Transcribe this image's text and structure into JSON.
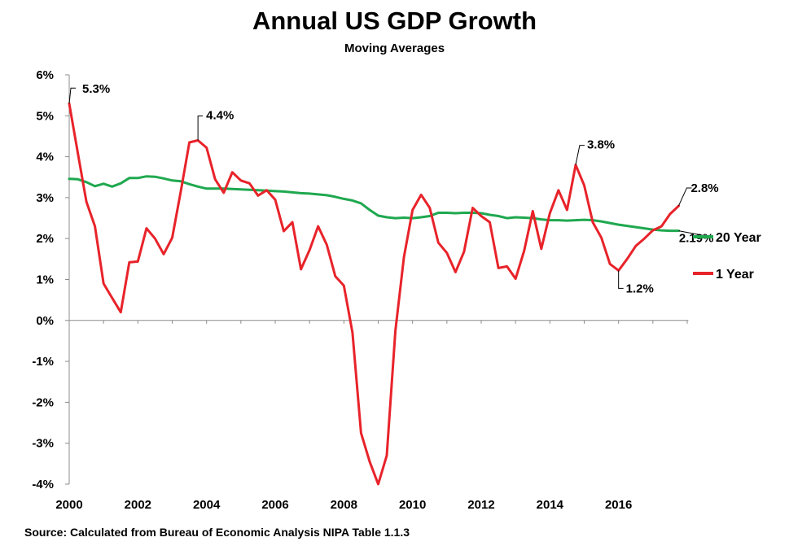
{
  "chart_data": {
    "type": "line",
    "title": "Annual US GDP Growth",
    "subtitle": "Moving Averages",
    "source": "Source: Calculated  from Bureau of Economic Analysis NIPA Table  1.1.3",
    "xlabel": "",
    "ylabel": "",
    "xlim": [
      2000,
      2018
    ],
    "ylim": [
      -4,
      6
    ],
    "x_ticks": [
      {
        "value": 2000,
        "label": "2000"
      },
      {
        "value": 2002,
        "label": "2002"
      },
      {
        "value": 2004,
        "label": "2004"
      },
      {
        "value": 2006,
        "label": "2006"
      },
      {
        "value": 2008,
        "label": "2008"
      },
      {
        "value": 2010,
        "label": "2010"
      },
      {
        "value": 2012,
        "label": "2012"
      },
      {
        "value": 2014,
        "label": "2014"
      },
      {
        "value": 2016,
        "label": "2016"
      }
    ],
    "y_ticks": [
      {
        "value": 6,
        "label": "6%"
      },
      {
        "value": 5,
        "label": "5%"
      },
      {
        "value": 4,
        "label": "4%"
      },
      {
        "value": 3,
        "label": "3%"
      },
      {
        "value": 2,
        "label": "2%"
      },
      {
        "value": 1,
        "label": "1%"
      },
      {
        "value": 0,
        "label": "0%"
      },
      {
        "value": -1,
        "label": "-1%"
      },
      {
        "value": -2,
        "label": "-2%"
      },
      {
        "value": -3,
        "label": "-3%"
      },
      {
        "value": -4,
        "label": "-4%"
      }
    ],
    "grid": false,
    "legend_position": "right",
    "series": [
      {
        "name": "20 Year",
        "color": "#1fa84f",
        "points": [
          [
            2000.0,
            3.46
          ],
          [
            2000.25,
            3.45
          ],
          [
            2000.5,
            3.38
          ],
          [
            2000.75,
            3.28
          ],
          [
            2001.0,
            3.34
          ],
          [
            2001.25,
            3.27
          ],
          [
            2001.5,
            3.35
          ],
          [
            2001.75,
            3.48
          ],
          [
            2002.0,
            3.48
          ],
          [
            2002.25,
            3.52
          ],
          [
            2002.5,
            3.51
          ],
          [
            2002.75,
            3.47
          ],
          [
            2003.0,
            3.42
          ],
          [
            2003.25,
            3.4
          ],
          [
            2003.5,
            3.33
          ],
          [
            2003.75,
            3.27
          ],
          [
            2004.0,
            3.22
          ],
          [
            2004.25,
            3.22
          ],
          [
            2004.5,
            3.22
          ],
          [
            2004.75,
            3.21
          ],
          [
            2005.0,
            3.2
          ],
          [
            2005.25,
            3.19
          ],
          [
            2005.5,
            3.18
          ],
          [
            2005.75,
            3.17
          ],
          [
            2006.0,
            3.16
          ],
          [
            2006.25,
            3.15
          ],
          [
            2006.5,
            3.13
          ],
          [
            2006.75,
            3.11
          ],
          [
            2007.0,
            3.1
          ],
          [
            2007.25,
            3.08
          ],
          [
            2007.5,
            3.06
          ],
          [
            2007.75,
            3.02
          ],
          [
            2008.0,
            2.97
          ],
          [
            2008.25,
            2.93
          ],
          [
            2008.5,
            2.86
          ],
          [
            2008.75,
            2.7
          ],
          [
            2009.0,
            2.56
          ],
          [
            2009.25,
            2.52
          ],
          [
            2009.5,
            2.5
          ],
          [
            2009.75,
            2.51
          ],
          [
            2010.0,
            2.5
          ],
          [
            2010.25,
            2.52
          ],
          [
            2010.5,
            2.55
          ],
          [
            2010.75,
            2.63
          ],
          [
            2011.0,
            2.63
          ],
          [
            2011.25,
            2.62
          ],
          [
            2011.5,
            2.63
          ],
          [
            2011.75,
            2.63
          ],
          [
            2012.0,
            2.62
          ],
          [
            2012.25,
            2.58
          ],
          [
            2012.5,
            2.55
          ],
          [
            2012.75,
            2.5
          ],
          [
            2013.0,
            2.52
          ],
          [
            2013.25,
            2.51
          ],
          [
            2013.5,
            2.5
          ],
          [
            2013.75,
            2.47
          ],
          [
            2014.0,
            2.45
          ],
          [
            2014.25,
            2.45
          ],
          [
            2014.5,
            2.44
          ],
          [
            2014.75,
            2.45
          ],
          [
            2015.0,
            2.46
          ],
          [
            2015.25,
            2.45
          ],
          [
            2015.5,
            2.42
          ],
          [
            2015.75,
            2.38
          ],
          [
            2016.0,
            2.34
          ],
          [
            2016.25,
            2.31
          ],
          [
            2016.5,
            2.28
          ],
          [
            2016.75,
            2.25
          ],
          [
            2017.0,
            2.22
          ],
          [
            2017.25,
            2.2
          ],
          [
            2017.5,
            2.19
          ],
          [
            2017.75,
            2.19
          ]
        ]
      },
      {
        "name": "1 Year",
        "color": "#e8232a",
        "points": [
          [
            2000.0,
            5.3
          ],
          [
            2000.25,
            4.1
          ],
          [
            2000.5,
            2.9
          ],
          [
            2000.75,
            2.3
          ],
          [
            2001.0,
            0.9
          ],
          [
            2001.25,
            0.55
          ],
          [
            2001.5,
            0.2
          ],
          [
            2001.75,
            1.42
          ],
          [
            2002.0,
            1.44
          ],
          [
            2002.25,
            2.25
          ],
          [
            2002.5,
            2.0
          ],
          [
            2002.75,
            1.62
          ],
          [
            2003.0,
            2.02
          ],
          [
            2003.25,
            3.15
          ],
          [
            2003.5,
            4.35
          ],
          [
            2003.75,
            4.4
          ],
          [
            2004.0,
            4.22
          ],
          [
            2004.25,
            3.45
          ],
          [
            2004.5,
            3.12
          ],
          [
            2004.75,
            3.62
          ],
          [
            2005.0,
            3.42
          ],
          [
            2005.25,
            3.35
          ],
          [
            2005.5,
            3.05
          ],
          [
            2005.75,
            3.18
          ],
          [
            2006.0,
            2.95
          ],
          [
            2006.25,
            2.18
          ],
          [
            2006.5,
            2.4
          ],
          [
            2006.75,
            1.25
          ],
          [
            2007.0,
            1.72
          ],
          [
            2007.25,
            2.3
          ],
          [
            2007.5,
            1.85
          ],
          [
            2007.75,
            1.08
          ],
          [
            2008.0,
            0.85
          ],
          [
            2008.25,
            -0.3
          ],
          [
            2008.5,
            -2.75
          ],
          [
            2008.75,
            -3.45
          ],
          [
            2009.0,
            -4.0
          ],
          [
            2009.25,
            -3.3
          ],
          [
            2009.5,
            -0.25
          ],
          [
            2009.75,
            1.55
          ],
          [
            2010.0,
            2.7
          ],
          [
            2010.25,
            3.07
          ],
          [
            2010.5,
            2.75
          ],
          [
            2010.75,
            1.9
          ],
          [
            2011.0,
            1.65
          ],
          [
            2011.25,
            1.18
          ],
          [
            2011.5,
            1.68
          ],
          [
            2011.75,
            2.75
          ],
          [
            2012.0,
            2.55
          ],
          [
            2012.25,
            2.4
          ],
          [
            2012.5,
            1.28
          ],
          [
            2012.75,
            1.32
          ],
          [
            2013.0,
            1.02
          ],
          [
            2013.25,
            1.7
          ],
          [
            2013.5,
            2.67
          ],
          [
            2013.75,
            1.75
          ],
          [
            2014.0,
            2.62
          ],
          [
            2014.25,
            3.18
          ],
          [
            2014.5,
            2.7
          ],
          [
            2014.75,
            3.8
          ],
          [
            2015.0,
            3.3
          ],
          [
            2015.25,
            2.4
          ],
          [
            2015.5,
            2.02
          ],
          [
            2015.75,
            1.38
          ],
          [
            2016.0,
            1.22
          ],
          [
            2016.25,
            1.5
          ],
          [
            2016.5,
            1.82
          ],
          [
            2016.75,
            2.0
          ],
          [
            2017.0,
            2.2
          ],
          [
            2017.25,
            2.3
          ],
          [
            2017.5,
            2.6
          ],
          [
            2017.75,
            2.8
          ]
        ]
      }
    ],
    "annotations": [
      {
        "series": "1 Year",
        "x": 2000.0,
        "y": 5.3,
        "label": "5.3%"
      },
      {
        "series": "1 Year",
        "x": 2003.75,
        "y": 4.4,
        "label": "4.4%"
      },
      {
        "series": "1 Year",
        "x": 2014.75,
        "y": 3.8,
        "label": "3.8%"
      },
      {
        "series": "1 Year",
        "x": 2017.75,
        "y": 2.8,
        "label": "2.8%"
      },
      {
        "series": "20 Year",
        "x": 2017.75,
        "y": 2.19,
        "label": "2.19%"
      },
      {
        "series": "1 Year",
        "x": 2016.0,
        "y": 1.22,
        "label": "1.2%"
      }
    ]
  }
}
